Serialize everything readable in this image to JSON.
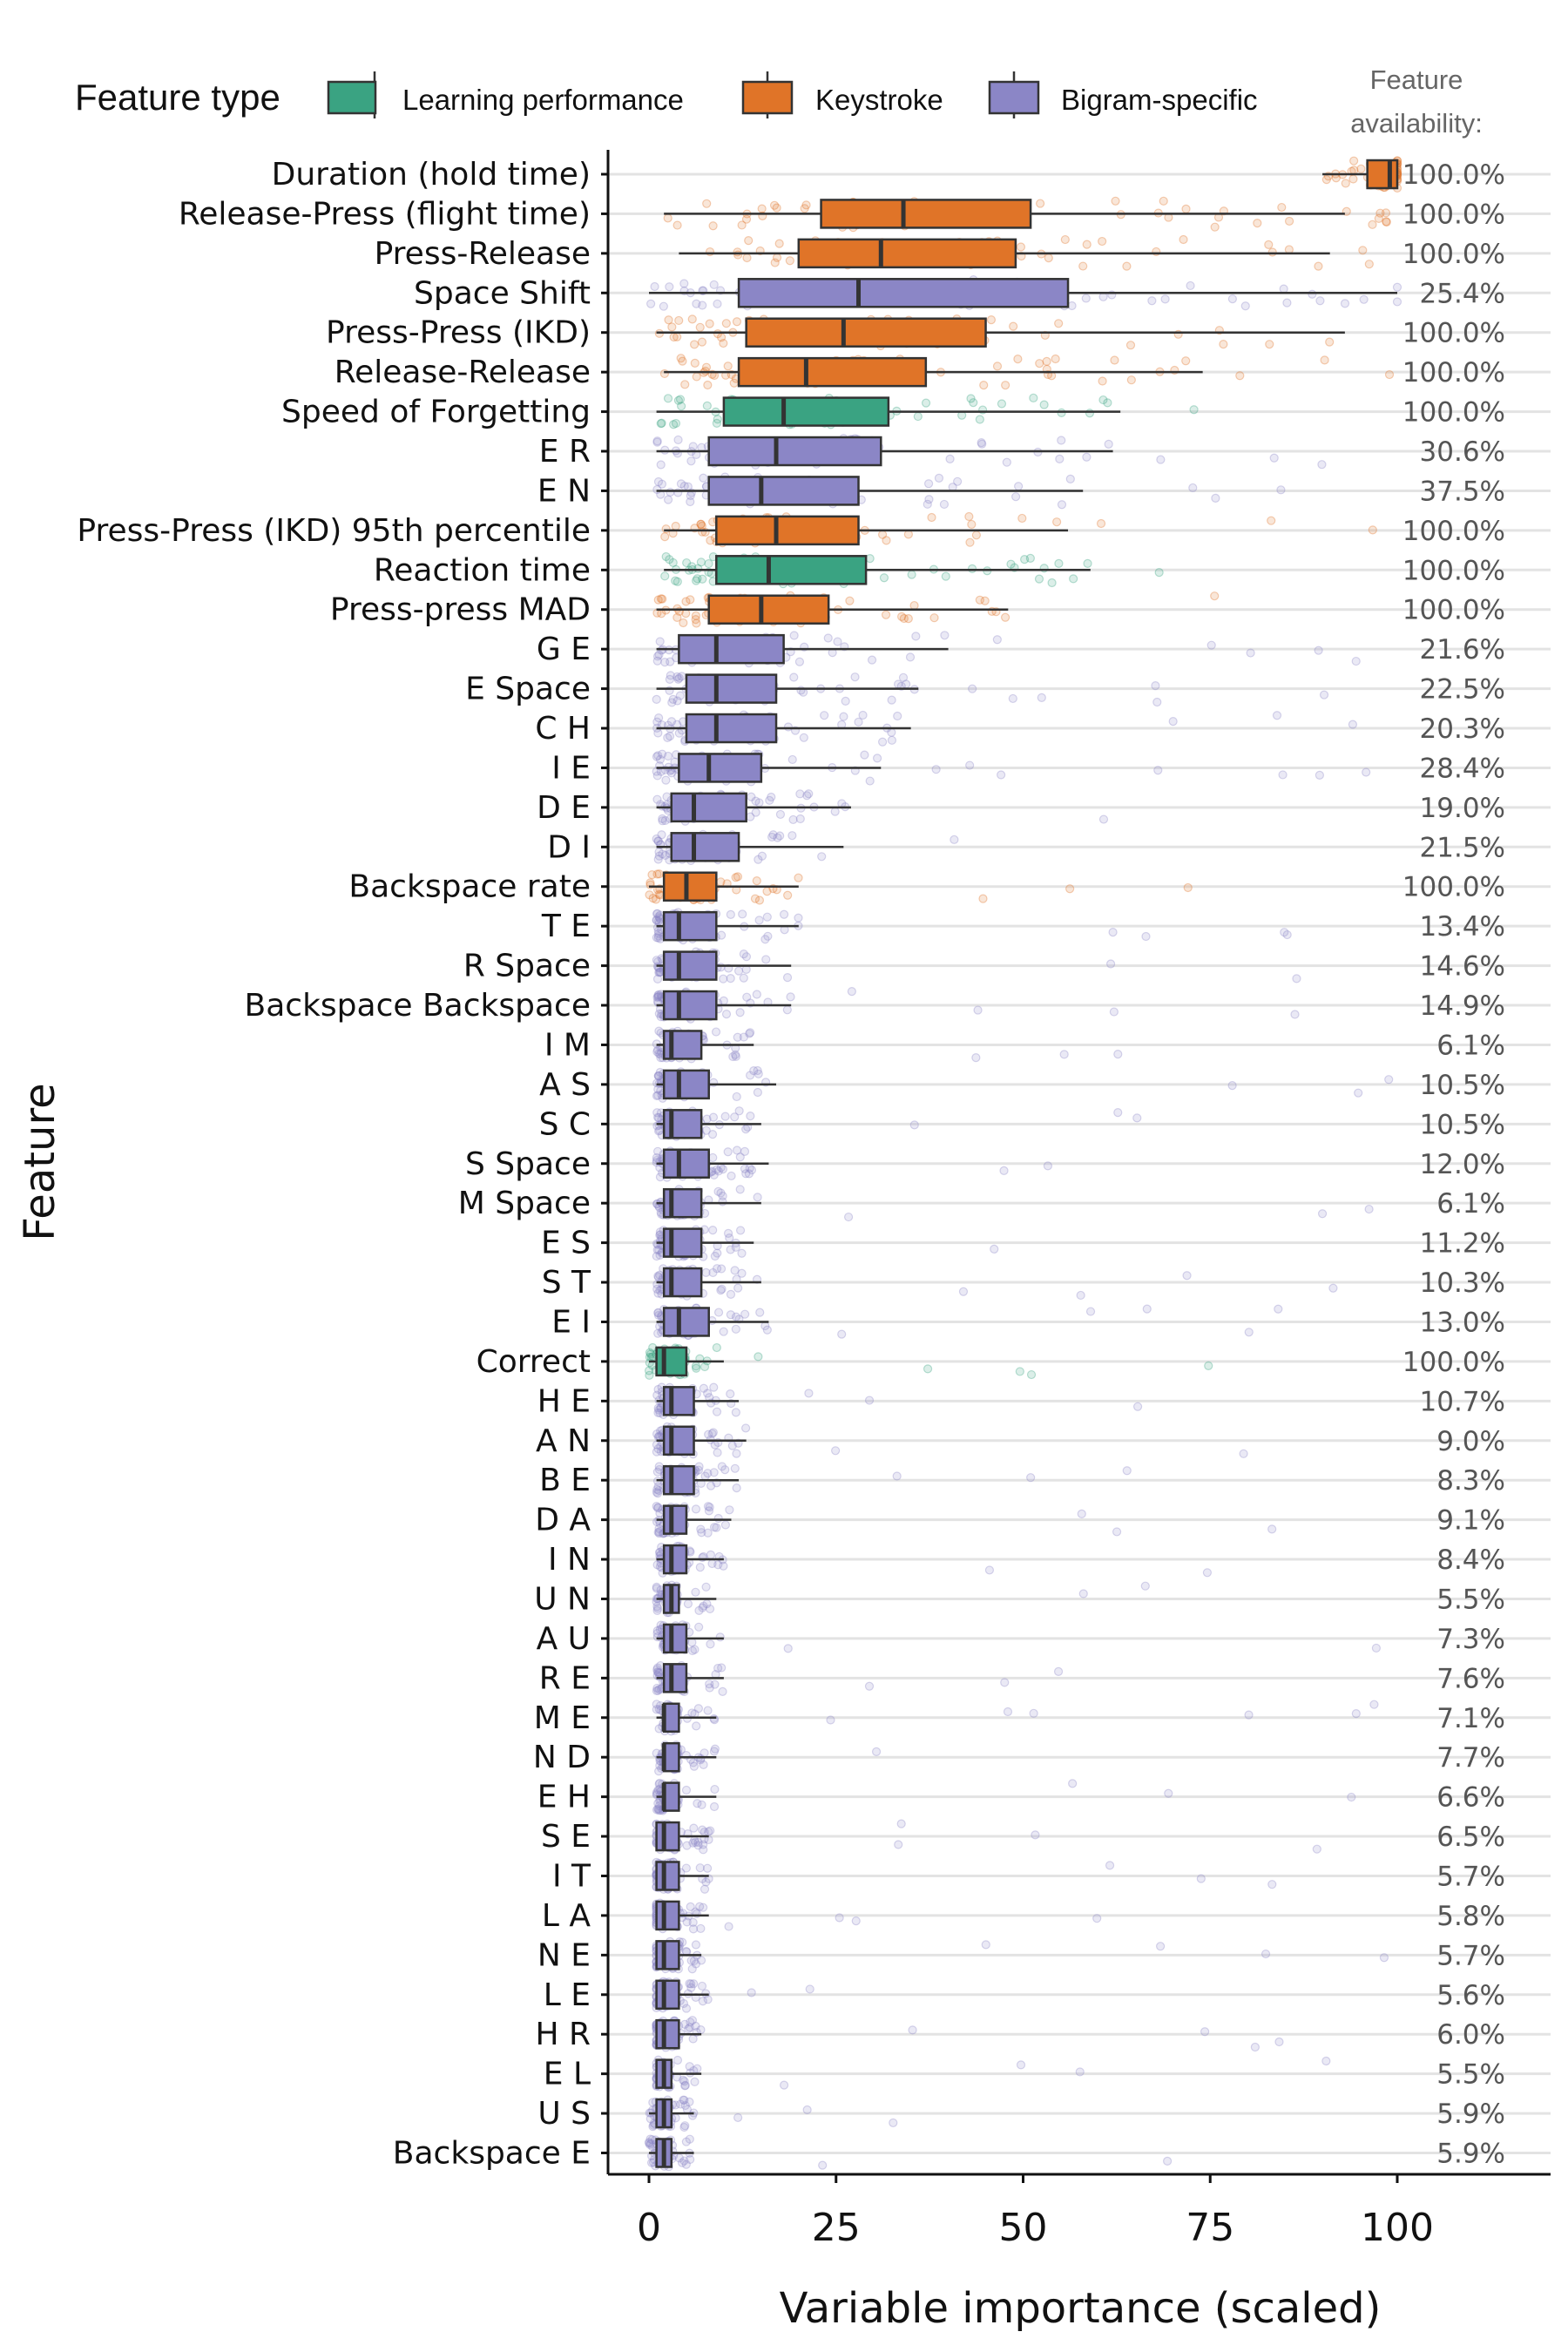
{
  "legend": {
    "title": "Feature type",
    "items": [
      {
        "label": "Learning performance",
        "color": "#3aa382"
      },
      {
        "label": "Keystroke",
        "color": "#e07428"
      },
      {
        "label": "Bigram-specific",
        "color": "#8b86c6"
      }
    ]
  },
  "availability_title": [
    "Feature",
    "availability:"
  ],
  "chart_data": {
    "type": "box",
    "xlabel": "Variable importance (scaled)",
    "ylabel": "Feature",
    "xlim": [
      0,
      100
    ],
    "x_ticks": [
      "0",
      "25",
      "50",
      "75",
      "100"
    ],
    "grid": "horizontal",
    "legend_position": "top",
    "features": [
      {
        "name": "Duration (hold time)",
        "type": "Keystroke",
        "availability": "100.0%",
        "min": 90,
        "q1": 96,
        "median": 99,
        "q3": 100,
        "max": 100
      },
      {
        "name": "Release-Press (flight time)",
        "type": "Keystroke",
        "availability": "100.0%",
        "min": 2,
        "q1": 23,
        "median": 34,
        "q3": 51,
        "max": 93
      },
      {
        "name": "Press-Release",
        "type": "Keystroke",
        "availability": "100.0%",
        "min": 4,
        "q1": 20,
        "median": 31,
        "q3": 49,
        "max": 91
      },
      {
        "name": "Space Shift",
        "type": "Bigram-specific",
        "availability": "25.4%",
        "min": 0,
        "q1": 12,
        "median": 28,
        "q3": 56,
        "max": 100
      },
      {
        "name": "Press-Press (IKD)",
        "type": "Keystroke",
        "availability": "100.0%",
        "min": 1,
        "q1": 13,
        "median": 26,
        "q3": 45,
        "max": 93
      },
      {
        "name": "Release-Release",
        "type": "Keystroke",
        "availability": "100.0%",
        "min": 2,
        "q1": 12,
        "median": 21,
        "q3": 37,
        "max": 74
      },
      {
        "name": "Speed of Forgetting",
        "type": "Learning performance",
        "availability": "100.0%",
        "min": 1,
        "q1": 10,
        "median": 18,
        "q3": 32,
        "max": 63
      },
      {
        "name": "E R",
        "type": "Bigram-specific",
        "availability": "30.6%",
        "min": 1,
        "q1": 8,
        "median": 17,
        "q3": 31,
        "max": 62
      },
      {
        "name": "E N",
        "type": "Bigram-specific",
        "availability": "37.5%",
        "min": 1,
        "q1": 8,
        "median": 15,
        "q3": 28,
        "max": 58
      },
      {
        "name": "Press-Press (IKD) 95th percentile",
        "type": "Keystroke",
        "availability": "100.0%",
        "min": 2,
        "q1": 9,
        "median": 17,
        "q3": 28,
        "max": 56
      },
      {
        "name": "Reaction time",
        "type": "Learning performance",
        "availability": "100.0%",
        "min": 2,
        "q1": 9,
        "median": 16,
        "q3": 29,
        "max": 59
      },
      {
        "name": "Press-press MAD",
        "type": "Keystroke",
        "availability": "100.0%",
        "min": 1,
        "q1": 8,
        "median": 15,
        "q3": 24,
        "max": 48
      },
      {
        "name": "G E",
        "type": "Bigram-specific",
        "availability": "21.6%",
        "min": 1,
        "q1": 4,
        "median": 9,
        "q3": 18,
        "max": 40
      },
      {
        "name": "E Space",
        "type": "Bigram-specific",
        "availability": "22.5%",
        "min": 1,
        "q1": 5,
        "median": 9,
        "q3": 17,
        "max": 36
      },
      {
        "name": "C H",
        "type": "Bigram-specific",
        "availability": "20.3%",
        "min": 1,
        "q1": 5,
        "median": 9,
        "q3": 17,
        "max": 35
      },
      {
        "name": "I E",
        "type": "Bigram-specific",
        "availability": "28.4%",
        "min": 1,
        "q1": 4,
        "median": 8,
        "q3": 15,
        "max": 31
      },
      {
        "name": "D E",
        "type": "Bigram-specific",
        "availability": "19.0%",
        "min": 1,
        "q1": 3,
        "median": 6,
        "q3": 13,
        "max": 27
      },
      {
        "name": "D I",
        "type": "Bigram-specific",
        "availability": "21.5%",
        "min": 1,
        "q1": 3,
        "median": 6,
        "q3": 12,
        "max": 26
      },
      {
        "name": "Backspace rate",
        "type": "Keystroke",
        "availability": "100.0%",
        "min": 0,
        "q1": 2,
        "median": 5,
        "q3": 9,
        "max": 20
      },
      {
        "name": "T E",
        "type": "Bigram-specific",
        "availability": "13.4%",
        "min": 1,
        "q1": 2,
        "median": 4,
        "q3": 9,
        "max": 20
      },
      {
        "name": "R Space",
        "type": "Bigram-specific",
        "availability": "14.6%",
        "min": 1,
        "q1": 2,
        "median": 4,
        "q3": 9,
        "max": 19
      },
      {
        "name": "Backspace Backspace",
        "type": "Bigram-specific",
        "availability": "14.9%",
        "min": 1,
        "q1": 2,
        "median": 4,
        "q3": 9,
        "max": 19
      },
      {
        "name": "I M",
        "type": "Bigram-specific",
        "availability": "6.1%",
        "min": 1,
        "q1": 2,
        "median": 3,
        "q3": 7,
        "max": 14
      },
      {
        "name": "A S",
        "type": "Bigram-specific",
        "availability": "10.5%",
        "min": 1,
        "q1": 2,
        "median": 4,
        "q3": 8,
        "max": 17
      },
      {
        "name": "S C",
        "type": "Bigram-specific",
        "availability": "10.5%",
        "min": 1,
        "q1": 2,
        "median": 3,
        "q3": 7,
        "max": 15
      },
      {
        "name": "S Space",
        "type": "Bigram-specific",
        "availability": "12.0%",
        "min": 1,
        "q1": 2,
        "median": 4,
        "q3": 8,
        "max": 16
      },
      {
        "name": "M Space",
        "type": "Bigram-specific",
        "availability": "6.1%",
        "min": 1,
        "q1": 2,
        "median": 3,
        "q3": 7,
        "max": 15
      },
      {
        "name": "E S",
        "type": "Bigram-specific",
        "availability": "11.2%",
        "min": 1,
        "q1": 2,
        "median": 3,
        "q3": 7,
        "max": 14
      },
      {
        "name": "S T",
        "type": "Bigram-specific",
        "availability": "10.3%",
        "min": 1,
        "q1": 2,
        "median": 3,
        "q3": 7,
        "max": 15
      },
      {
        "name": "E I",
        "type": "Bigram-specific",
        "availability": "13.0%",
        "min": 1,
        "q1": 2,
        "median": 4,
        "q3": 8,
        "max": 16
      },
      {
        "name": "Correct",
        "type": "Learning performance",
        "availability": "100.0%",
        "min": 0,
        "q1": 1,
        "median": 2,
        "q3": 5,
        "max": 10
      },
      {
        "name": "H E",
        "type": "Bigram-specific",
        "availability": "10.7%",
        "min": 1,
        "q1": 2,
        "median": 3,
        "q3": 6,
        "max": 12
      },
      {
        "name": "A N",
        "type": "Bigram-specific",
        "availability": "9.0%",
        "min": 1,
        "q1": 2,
        "median": 3,
        "q3": 6,
        "max": 13
      },
      {
        "name": "B E",
        "type": "Bigram-specific",
        "availability": "8.3%",
        "min": 1,
        "q1": 2,
        "median": 3,
        "q3": 6,
        "max": 12
      },
      {
        "name": "D A",
        "type": "Bigram-specific",
        "availability": "9.1%",
        "min": 1,
        "q1": 2,
        "median": 3,
        "q3": 5,
        "max": 11
      },
      {
        "name": "I N",
        "type": "Bigram-specific",
        "availability": "8.4%",
        "min": 1,
        "q1": 2,
        "median": 3,
        "q3": 5,
        "max": 10
      },
      {
        "name": "U N",
        "type": "Bigram-specific",
        "availability": "5.5%",
        "min": 1,
        "q1": 2,
        "median": 3,
        "q3": 4,
        "max": 9
      },
      {
        "name": "A U",
        "type": "Bigram-specific",
        "availability": "7.3%",
        "min": 1,
        "q1": 2,
        "median": 3,
        "q3": 5,
        "max": 10
      },
      {
        "name": "R E",
        "type": "Bigram-specific",
        "availability": "7.6%",
        "min": 1,
        "q1": 2,
        "median": 3,
        "q3": 5,
        "max": 10
      },
      {
        "name": "M E",
        "type": "Bigram-specific",
        "availability": "7.1%",
        "min": 1,
        "q1": 2,
        "median": 2,
        "q3": 4,
        "max": 9
      },
      {
        "name": "N D",
        "type": "Bigram-specific",
        "availability": "7.7%",
        "min": 1,
        "q1": 2,
        "median": 2,
        "q3": 4,
        "max": 9
      },
      {
        "name": "E H",
        "type": "Bigram-specific",
        "availability": "6.6%",
        "min": 1,
        "q1": 2,
        "median": 2,
        "q3": 4,
        "max": 9
      },
      {
        "name": "S E",
        "type": "Bigram-specific",
        "availability": "6.5%",
        "min": 1,
        "q1": 1,
        "median": 2,
        "q3": 4,
        "max": 8
      },
      {
        "name": "I T",
        "type": "Bigram-specific",
        "availability": "5.7%",
        "min": 1,
        "q1": 1,
        "median": 2,
        "q3": 4,
        "max": 8
      },
      {
        "name": "L A",
        "type": "Bigram-specific",
        "availability": "5.8%",
        "min": 1,
        "q1": 1,
        "median": 2,
        "q3": 4,
        "max": 8
      },
      {
        "name": "N E",
        "type": "Bigram-specific",
        "availability": "5.7%",
        "min": 1,
        "q1": 1,
        "median": 2,
        "q3": 4,
        "max": 7
      },
      {
        "name": "L E",
        "type": "Bigram-specific",
        "availability": "5.6%",
        "min": 1,
        "q1": 1,
        "median": 2,
        "q3": 4,
        "max": 8
      },
      {
        "name": "H R",
        "type": "Bigram-specific",
        "availability": "6.0%",
        "min": 1,
        "q1": 1,
        "median": 2,
        "q3": 4,
        "max": 7
      },
      {
        "name": "E L",
        "type": "Bigram-specific",
        "availability": "5.5%",
        "min": 1,
        "q1": 1,
        "median": 2,
        "q3": 3,
        "max": 7
      },
      {
        "name": "U S",
        "type": "Bigram-specific",
        "availability": "5.9%",
        "min": 0,
        "q1": 1,
        "median": 2,
        "q3": 3,
        "max": 6
      },
      {
        "name": "Backspace E",
        "type": "Bigram-specific",
        "availability": "5.9%",
        "min": 0,
        "q1": 1,
        "median": 2,
        "q3": 3,
        "max": 6
      }
    ]
  }
}
